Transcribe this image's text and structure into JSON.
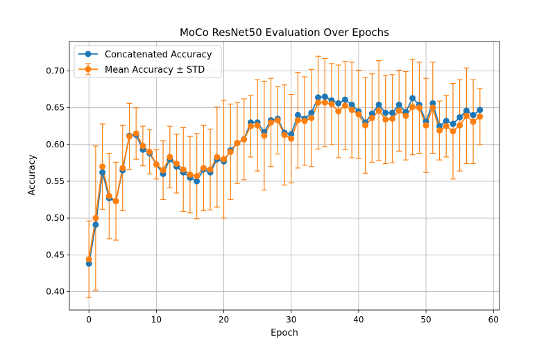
{
  "chart_data": {
    "type": "line",
    "title": "MoCo ResNet50 Evaluation Over Epochs",
    "xlabel": "Epoch",
    "ylabel": "Accuracy",
    "xlim": [
      -2.9,
      60.9
    ],
    "ylim": [
      0.375,
      0.74
    ],
    "xticks": [
      0,
      10,
      20,
      30,
      40,
      50,
      60
    ],
    "yticks": [
      0.4,
      0.45,
      0.5,
      0.55,
      0.6,
      0.65,
      0.7
    ],
    "xtick_labels": [
      "0",
      "10",
      "20",
      "30",
      "40",
      "50",
      "60"
    ],
    "ytick_labels": [
      "0.40",
      "0.45",
      "0.50",
      "0.55",
      "0.60",
      "0.65",
      "0.70"
    ],
    "grid": true,
    "legend_position": "top-left",
    "colors": {
      "concat": "#1f77b4",
      "mean": "#ff7f0e"
    },
    "x": [
      0,
      1,
      2,
      3,
      4,
      5,
      6,
      7,
      8,
      9,
      10,
      11,
      12,
      13,
      14,
      15,
      16,
      17,
      18,
      19,
      20,
      21,
      22,
      23,
      24,
      25,
      26,
      27,
      28,
      29,
      30,
      31,
      32,
      33,
      34,
      35,
      36,
      37,
      38,
      39,
      40,
      41,
      42,
      43,
      44,
      45,
      46,
      47,
      48,
      49,
      50,
      51,
      52,
      53,
      54,
      55,
      56,
      57,
      58
    ],
    "series": [
      {
        "name": "Concatenated Accuracy",
        "values": [
          0.438,
          0.491,
          0.562,
          0.527,
          0.523,
          0.565,
          0.612,
          0.613,
          0.593,
          0.588,
          0.573,
          0.56,
          0.58,
          0.57,
          0.562,
          0.555,
          0.55,
          0.566,
          0.562,
          0.58,
          0.577,
          0.592,
          0.602,
          0.607,
          0.63,
          0.63,
          0.617,
          0.633,
          0.635,
          0.616,
          0.614,
          0.64,
          0.635,
          0.643,
          0.664,
          0.665,
          0.66,
          0.656,
          0.661,
          0.654,
          0.645,
          0.63,
          0.642,
          0.654,
          0.643,
          0.643,
          0.654,
          0.644,
          0.663,
          0.654,
          0.631,
          0.656,
          0.625,
          0.632,
          0.628,
          0.637,
          0.646,
          0.64,
          0.647
        ]
      },
      {
        "name": "Mean Accuracy ± STD",
        "values": [
          0.444,
          0.5,
          0.57,
          0.53,
          0.523,
          0.568,
          0.611,
          0.615,
          0.598,
          0.59,
          0.573,
          0.565,
          0.583,
          0.574,
          0.566,
          0.559,
          0.557,
          0.568,
          0.566,
          0.583,
          0.58,
          0.59,
          0.602,
          0.607,
          0.625,
          0.626,
          0.612,
          0.63,
          0.633,
          0.613,
          0.608,
          0.633,
          0.632,
          0.636,
          0.657,
          0.657,
          0.655,
          0.645,
          0.653,
          0.647,
          0.641,
          0.626,
          0.636,
          0.646,
          0.634,
          0.635,
          0.646,
          0.639,
          0.651,
          0.65,
          0.626,
          0.65,
          0.619,
          0.625,
          0.618,
          0.626,
          0.639,
          0.631,
          0.638
        ],
        "std": [
          0.052,
          0.098,
          0.058,
          0.058,
          0.053,
          0.058,
          0.045,
          0.035,
          0.027,
          0.03,
          0.02,
          0.04,
          0.042,
          0.04,
          0.057,
          0.052,
          0.058,
          0.058,
          0.055,
          0.068,
          0.08,
          0.065,
          0.055,
          0.055,
          0.042,
          0.062,
          0.074,
          0.06,
          0.046,
          0.068,
          0.06,
          0.065,
          0.06,
          0.066,
          0.063,
          0.06,
          0.055,
          0.063,
          0.06,
          0.065,
          0.06,
          0.065,
          0.06,
          0.068,
          0.06,
          0.06,
          0.055,
          0.06,
          0.065,
          0.062,
          0.064,
          0.062,
          0.04,
          0.042,
          0.065,
          0.062,
          0.065,
          0.057,
          0.038
        ]
      }
    ]
  }
}
